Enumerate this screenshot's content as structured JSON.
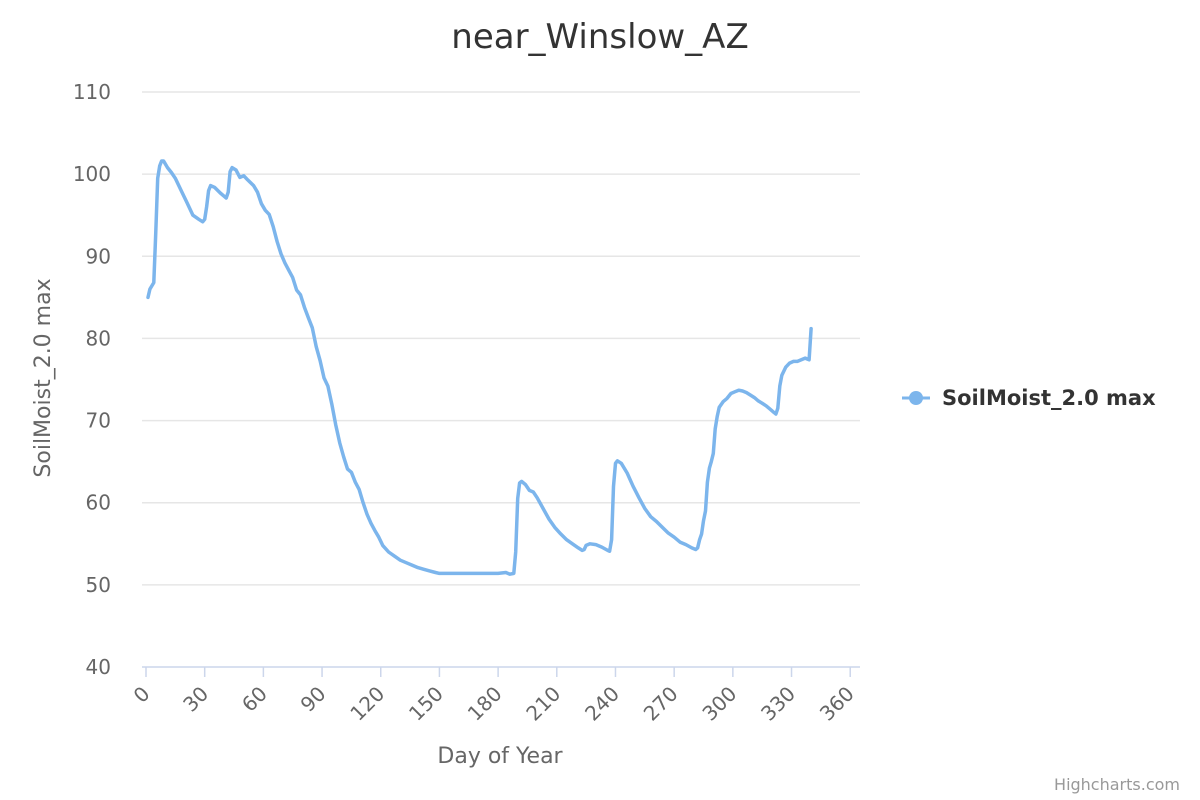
{
  "chart_data": {
    "type": "line",
    "title": "near_Winslow_AZ",
    "xlabel": "Day of Year",
    "ylabel": "SoilMoist_2.0 max",
    "xlim": [
      0,
      365
    ],
    "ylim": [
      40,
      110
    ],
    "xticks": [
      0,
      30,
      60,
      90,
      120,
      150,
      180,
      210,
      240,
      270,
      300,
      330,
      360
    ],
    "yticks": [
      40,
      50,
      60,
      70,
      80,
      90,
      100,
      110
    ],
    "grid": "horizontal",
    "legend_position": "right",
    "series": [
      {
        "name": "SoilMoist_2.0 max",
        "color": "#7cb5ec",
        "points": [
          [
            1,
            85.0
          ],
          [
            2,
            86.0
          ],
          [
            4,
            86.8
          ],
          [
            5,
            93.0
          ],
          [
            6,
            99.5
          ],
          [
            7,
            101.0
          ],
          [
            8,
            101.6
          ],
          [
            9,
            101.6
          ],
          [
            11,
            100.8
          ],
          [
            13,
            100.2
          ],
          [
            15,
            99.5
          ],
          [
            18,
            98.0
          ],
          [
            21,
            96.5
          ],
          [
            24,
            95.0
          ],
          [
            27,
            94.5
          ],
          [
            29,
            94.2
          ],
          [
            30,
            94.5
          ],
          [
            31,
            96.0
          ],
          [
            32,
            98.0
          ],
          [
            33,
            98.6
          ],
          [
            35,
            98.4
          ],
          [
            38,
            97.7
          ],
          [
            40,
            97.3
          ],
          [
            41,
            97.1
          ],
          [
            42,
            97.8
          ],
          [
            43,
            100.3
          ],
          [
            44,
            100.8
          ],
          [
            46,
            100.5
          ],
          [
            48,
            99.6
          ],
          [
            50,
            99.8
          ],
          [
            52,
            99.3
          ],
          [
            55,
            98.6
          ],
          [
            57,
            97.8
          ],
          [
            59,
            96.4
          ],
          [
            61,
            95.6
          ],
          [
            63,
            95.1
          ],
          [
            65,
            93.6
          ],
          [
            67,
            91.8
          ],
          [
            69,
            90.3
          ],
          [
            71,
            89.2
          ],
          [
            73,
            88.3
          ],
          [
            75,
            87.4
          ],
          [
            77,
            85.9
          ],
          [
            79,
            85.3
          ],
          [
            81,
            83.8
          ],
          [
            83,
            82.5
          ],
          [
            85,
            81.3
          ],
          [
            87,
            79.0
          ],
          [
            89,
            77.3
          ],
          [
            91,
            75.2
          ],
          [
            93,
            74.2
          ],
          [
            95,
            72.0
          ],
          [
            97,
            69.5
          ],
          [
            99,
            67.3
          ],
          [
            101,
            65.6
          ],
          [
            103,
            64.1
          ],
          [
            105,
            63.7
          ],
          [
            107,
            62.5
          ],
          [
            109,
            61.6
          ],
          [
            111,
            60.0
          ],
          [
            113,
            58.6
          ],
          [
            115,
            57.5
          ],
          [
            117,
            56.6
          ],
          [
            119,
            55.8
          ],
          [
            121,
            54.8
          ],
          [
            124,
            54.0
          ],
          [
            127,
            53.5
          ],
          [
            130,
            53.0
          ],
          [
            133,
            52.7
          ],
          [
            136,
            52.4
          ],
          [
            139,
            52.1
          ],
          [
            142,
            51.9
          ],
          [
            145,
            51.7
          ],
          [
            148,
            51.5
          ],
          [
            150,
            51.4
          ],
          [
            155,
            51.4
          ],
          [
            160,
            51.4
          ],
          [
            165,
            51.4
          ],
          [
            170,
            51.4
          ],
          [
            175,
            51.4
          ],
          [
            180,
            51.4
          ],
          [
            184,
            51.5
          ],
          [
            186,
            51.3
          ],
          [
            188,
            51.4
          ],
          [
            189,
            54.0
          ],
          [
            190,
            60.5
          ],
          [
            191,
            62.4
          ],
          [
            192,
            62.6
          ],
          [
            194,
            62.2
          ],
          [
            196,
            61.5
          ],
          [
            198,
            61.3
          ],
          [
            200,
            60.6
          ],
          [
            203,
            59.3
          ],
          [
            206,
            58.0
          ],
          [
            209,
            57.0
          ],
          [
            212,
            56.2
          ],
          [
            215,
            55.5
          ],
          [
            218,
            55.0
          ],
          [
            221,
            54.5
          ],
          [
            223,
            54.2
          ],
          [
            224,
            54.3
          ],
          [
            225,
            54.8
          ],
          [
            227,
            55.0
          ],
          [
            230,
            54.9
          ],
          [
            233,
            54.6
          ],
          [
            236,
            54.2
          ],
          [
            237,
            54.1
          ],
          [
            238,
            55.5
          ],
          [
            239,
            62.0
          ],
          [
            240,
            64.8
          ],
          [
            241,
            65.1
          ],
          [
            243,
            64.8
          ],
          [
            246,
            63.6
          ],
          [
            249,
            62.0
          ],
          [
            252,
            60.6
          ],
          [
            255,
            59.3
          ],
          [
            258,
            58.3
          ],
          [
            261,
            57.7
          ],
          [
            264,
            57.0
          ],
          [
            267,
            56.3
          ],
          [
            270,
            55.8
          ],
          [
            273,
            55.2
          ],
          [
            276,
            54.9
          ],
          [
            279,
            54.5
          ],
          [
            281,
            54.3
          ],
          [
            282,
            54.5
          ],
          [
            283,
            55.5
          ],
          [
            284,
            56.2
          ],
          [
            285,
            57.8
          ],
          [
            286,
            59.0
          ],
          [
            287,
            62.5
          ],
          [
            288,
            64.2
          ],
          [
            289,
            65.0
          ],
          [
            290,
            66.0
          ],
          [
            291,
            69.0
          ],
          [
            292,
            70.5
          ],
          [
            293,
            71.6
          ],
          [
            295,
            72.3
          ],
          [
            297,
            72.7
          ],
          [
            299,
            73.3
          ],
          [
            301,
            73.5
          ],
          [
            303,
            73.7
          ],
          [
            305,
            73.6
          ],
          [
            307,
            73.4
          ],
          [
            309,
            73.1
          ],
          [
            311,
            72.8
          ],
          [
            313,
            72.4
          ],
          [
            315,
            72.1
          ],
          [
            317,
            71.8
          ],
          [
            319,
            71.4
          ],
          [
            321,
            71.0
          ],
          [
            322,
            70.8
          ],
          [
            323,
            71.5
          ],
          [
            324,
            74.2
          ],
          [
            325,
            75.5
          ],
          [
            327,
            76.5
          ],
          [
            329,
            77.0
          ],
          [
            331,
            77.2
          ],
          [
            333,
            77.2
          ],
          [
            335,
            77.4
          ],
          [
            337,
            77.6
          ],
          [
            338,
            77.5
          ],
          [
            339,
            77.4
          ],
          [
            340,
            81.2
          ]
        ]
      }
    ]
  },
  "credit": "Highcharts.com"
}
